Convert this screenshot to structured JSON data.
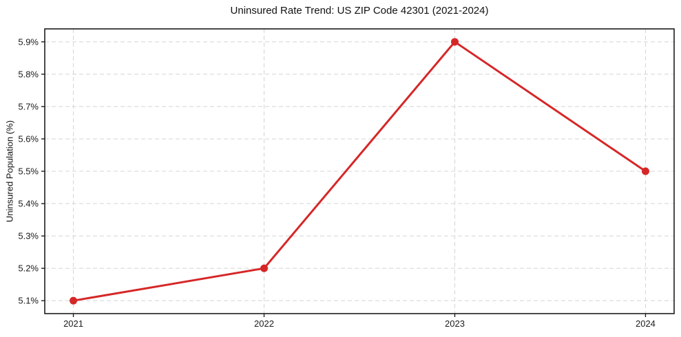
{
  "chart_data": {
    "type": "line",
    "title": "Uninsured Rate Trend: US ZIP Code 42301 (2021-2024)",
    "xlabel": "",
    "ylabel": "Uninsured Population (%)",
    "x": [
      2021,
      2022,
      2023,
      2024
    ],
    "values": [
      5.1,
      5.2,
      5.9,
      5.5
    ],
    "xtick_labels": [
      "2021",
      "2022",
      "2023",
      "2024"
    ],
    "yticks": [
      5.1,
      5.2,
      5.3,
      5.4,
      5.5,
      5.6,
      5.7,
      5.8,
      5.9
    ],
    "ytick_labels": [
      "5.1%",
      "5.2%",
      "5.3%",
      "5.4%",
      "5.5%",
      "5.6%",
      "5.7%",
      "5.8%",
      "5.9%"
    ],
    "xlim": [
      2020.85,
      2024.15
    ],
    "ylim": [
      5.06,
      5.94
    ],
    "grid": true,
    "grid_style": "dashed",
    "legend": "none",
    "colors": {
      "line": "#d62728",
      "marker": "#d62728",
      "grid": "#d4d4d4",
      "spine": "#1c1c1c",
      "tick_text": "#1a1a1a",
      "background": "#ffffff"
    }
  }
}
